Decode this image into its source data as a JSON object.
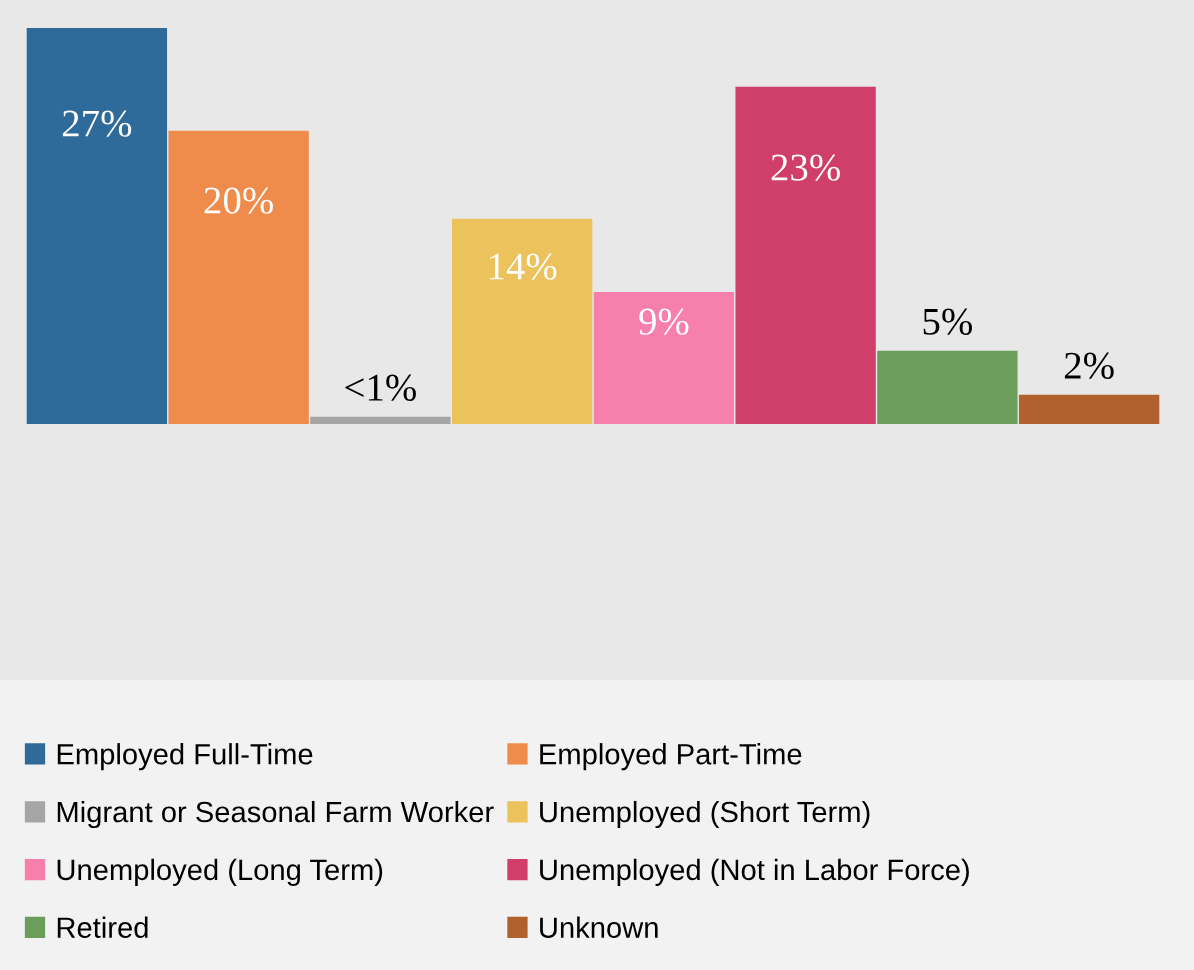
{
  "chart_data": {
    "type": "bar",
    "categories": [
      null
    ],
    "data_labels": true,
    "legend": "bottom",
    "series": [
      {
        "name": "Employed Full-Time",
        "color": "#2e6b9a",
        "values": [
          27
        ],
        "value_labels": [
          "27%"
        ]
      },
      {
        "name": "Employed Part-Time",
        "color": "#ef8c4b",
        "values": [
          20
        ],
        "value_labels": [
          "20%"
        ]
      },
      {
        "name": "Migrant or Seasonal Farm Worker",
        "color": "#a5a5a5",
        "values": [
          0.5
        ],
        "value_labels": [
          "<1%"
        ]
      },
      {
        "name": "Unemployed (Short Term)",
        "color": "#ebc25b",
        "values": [
          14
        ],
        "value_labels": [
          "14%"
        ]
      },
      {
        "name": "Unemployed (Long Term)",
        "color": "#f77fab",
        "values": [
          9
        ],
        "value_labels": [
          "9%"
        ]
      },
      {
        "name": "Unemployed (Not in Labor Force)",
        "color": "#d03f6a",
        "values": [
          23
        ],
        "value_labels": [
          "23%"
        ]
      },
      {
        "name": "Retired",
        "color": "#6a9e5a",
        "values": [
          5
        ],
        "value_labels": [
          "5%"
        ]
      },
      {
        "name": "Unknown",
        "color": "#b0612d",
        "values": [
          2
        ],
        "value_labels": [
          "2%"
        ]
      }
    ]
  }
}
